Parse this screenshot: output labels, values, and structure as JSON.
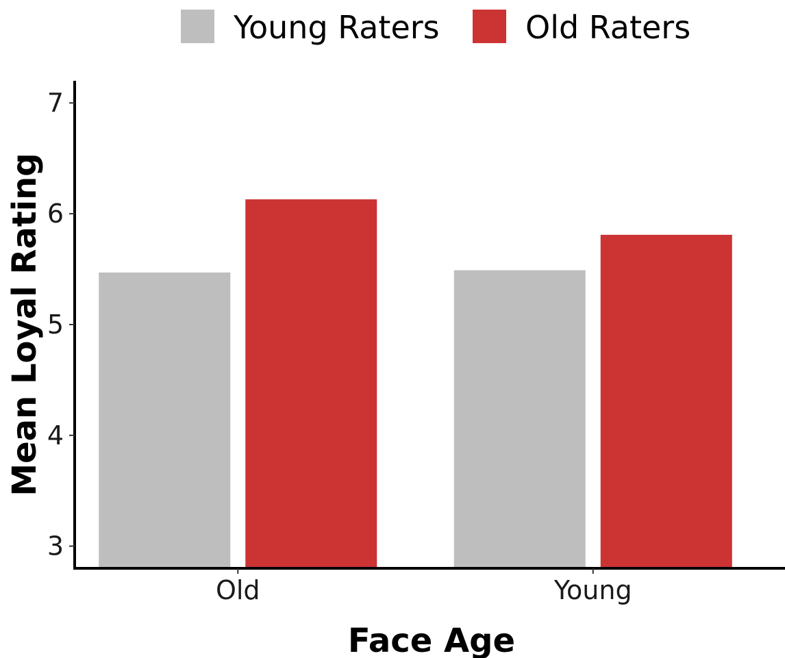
{
  "chart_data": {
    "type": "bar",
    "categories": [
      "Old",
      "Young"
    ],
    "series": [
      {
        "name": "Young Raters",
        "color": "#bebebe",
        "values": [
          5.47,
          5.49
        ]
      },
      {
        "name": "Old Raters",
        "color": "#cc3333",
        "values": [
          6.13,
          5.81
        ]
      }
    ],
    "xlabel": "Face Age",
    "ylabel": "Mean Loyal Rating",
    "yticks": [
      3,
      4,
      5,
      6,
      7
    ],
    "ylim": [
      2.8,
      7.2
    ],
    "grid": false,
    "legend_position": "top"
  }
}
